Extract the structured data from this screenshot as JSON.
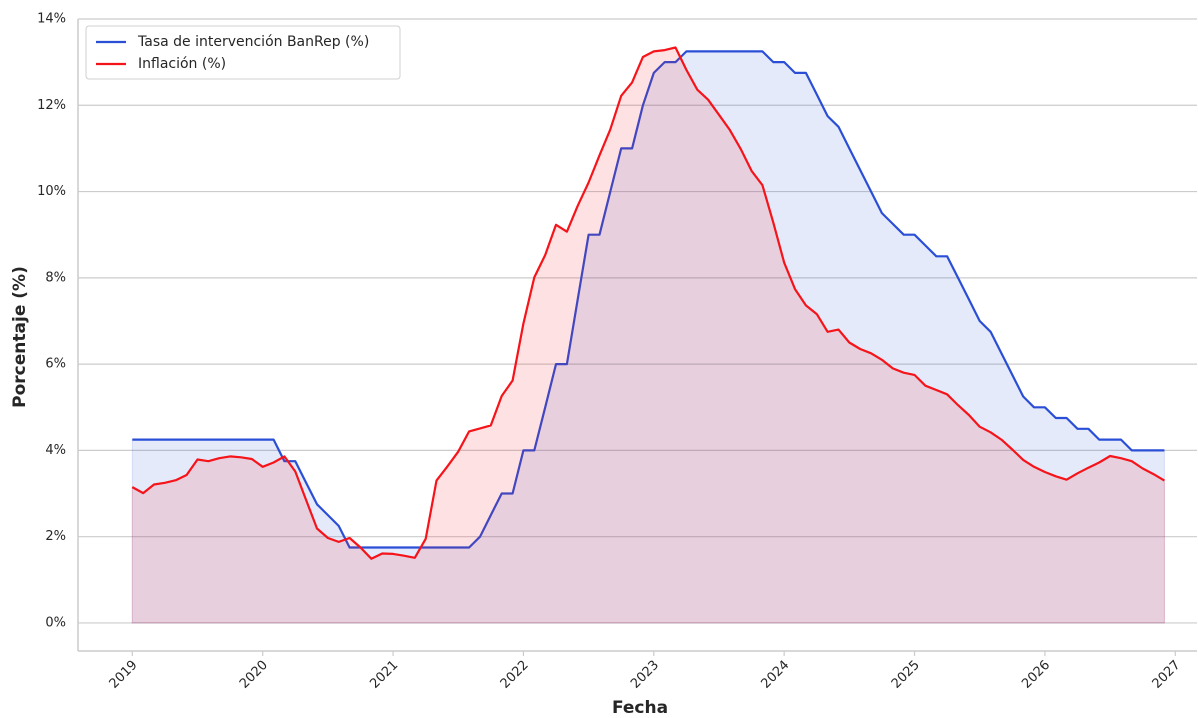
{
  "chart_data": {
    "type": "line",
    "xlabel": "Fecha",
    "ylabel": "Porcentaje (%)",
    "x": [
      "2019-01",
      "2019-02",
      "2019-03",
      "2019-04",
      "2019-05",
      "2019-06",
      "2019-07",
      "2019-08",
      "2019-09",
      "2019-10",
      "2019-11",
      "2019-12",
      "2020-01",
      "2020-02",
      "2020-03",
      "2020-04",
      "2020-05",
      "2020-06",
      "2020-07",
      "2020-08",
      "2020-09",
      "2020-10",
      "2020-11",
      "2020-12",
      "2021-01",
      "2021-02",
      "2021-03",
      "2021-04",
      "2021-05",
      "2021-06",
      "2021-07",
      "2021-08",
      "2021-09",
      "2021-10",
      "2021-11",
      "2021-12",
      "2022-01",
      "2022-02",
      "2022-03",
      "2022-04",
      "2022-05",
      "2022-06",
      "2022-07",
      "2022-08",
      "2022-09",
      "2022-10",
      "2022-11",
      "2022-12",
      "2023-01",
      "2023-02",
      "2023-03",
      "2023-04",
      "2023-05",
      "2023-06",
      "2023-07",
      "2023-08",
      "2023-09",
      "2023-10",
      "2023-11",
      "2023-12",
      "2024-01",
      "2024-02",
      "2024-03",
      "2024-04",
      "2024-05",
      "2024-06",
      "2024-07",
      "2024-08",
      "2024-09",
      "2024-10",
      "2024-11",
      "2024-12",
      "2025-01",
      "2025-02",
      "2025-03",
      "2025-04",
      "2025-05",
      "2025-06",
      "2025-07",
      "2025-08",
      "2025-09",
      "2025-10",
      "2025-11",
      "2025-12",
      "2026-01",
      "2026-02",
      "2026-03",
      "2026-04",
      "2026-05",
      "2026-06",
      "2026-07",
      "2026-08",
      "2026-09",
      "2026-10",
      "2026-11",
      "2026-12"
    ],
    "series": [
      {
        "name": "Tasa de intervención BanRep (%)",
        "color": "#2a4fd6",
        "values": [
          4.25,
          4.25,
          4.25,
          4.25,
          4.25,
          4.25,
          4.25,
          4.25,
          4.25,
          4.25,
          4.25,
          4.25,
          4.25,
          4.25,
          3.75,
          3.75,
          3.25,
          2.75,
          2.5,
          2.25,
          1.75,
          1.75,
          1.75,
          1.75,
          1.75,
          1.75,
          1.75,
          1.75,
          1.75,
          1.75,
          1.75,
          1.75,
          2.0,
          2.5,
          3.0,
          3.0,
          4.0,
          4.0,
          5.0,
          6.0,
          6.0,
          7.5,
          9.0,
          9.0,
          10.0,
          11.0,
          11.0,
          12.0,
          12.75,
          13.0,
          13.0,
          13.25,
          13.25,
          13.25,
          13.25,
          13.25,
          13.25,
          13.25,
          13.25,
          13.0,
          13.0,
          12.75,
          12.75,
          12.25,
          11.75,
          11.5,
          11.0,
          10.5,
          10.0,
          9.5,
          9.25,
          9.0,
          9.0,
          8.75,
          8.5,
          8.5,
          8.0,
          7.5,
          7.0,
          6.75,
          6.25,
          5.75,
          5.25,
          5.0,
          5.0,
          4.75,
          4.75,
          4.5,
          4.5,
          4.25,
          4.25,
          4.25,
          4.0,
          4.0,
          4.0,
          4.0
        ]
      },
      {
        "name": "Inflación (%)",
        "color": "#f5141a",
        "values": [
          3.15,
          3.01,
          3.21,
          3.25,
          3.31,
          3.43,
          3.79,
          3.75,
          3.82,
          3.86,
          3.84,
          3.8,
          3.62,
          3.72,
          3.86,
          3.51,
          2.85,
          2.19,
          1.97,
          1.88,
          1.97,
          1.75,
          1.49,
          1.61,
          1.6,
          1.56,
          1.51,
          1.95,
          3.3,
          3.63,
          3.97,
          4.44,
          4.51,
          4.58,
          5.26,
          5.62,
          6.94,
          8.01,
          8.53,
          9.23,
          9.07,
          9.67,
          10.21,
          10.84,
          11.44,
          12.22,
          12.53,
          13.12,
          13.25,
          13.28,
          13.34,
          12.82,
          12.36,
          12.13,
          11.78,
          11.43,
          10.99,
          10.48,
          10.15,
          9.28,
          8.35,
          7.74,
          7.36,
          7.16,
          6.75,
          6.8,
          6.5,
          6.35,
          6.25,
          6.1,
          5.9,
          5.8,
          5.75,
          5.5,
          5.4,
          5.3,
          5.05,
          4.82,
          4.55,
          4.42,
          4.25,
          4.02,
          3.78,
          3.62,
          3.5,
          3.4,
          3.32,
          3.47,
          3.6,
          3.72,
          3.87,
          3.82,
          3.75,
          3.58,
          3.45,
          3.3
        ]
      }
    ],
    "xlim": [
      "2018-08",
      "2027-03"
    ],
    "xticks": [
      "2019",
      "2020",
      "2021",
      "2022",
      "2023",
      "2024",
      "2025",
      "2026",
      "2027"
    ],
    "ylim": [
      -0.65,
      14
    ],
    "yticks": [
      {
        "value": 0,
        "label": "0%"
      },
      {
        "value": 2,
        "label": "2%"
      },
      {
        "value": 4,
        "label": "4%"
      },
      {
        "value": 6,
        "label": "6%"
      },
      {
        "value": 8,
        "label": "8%"
      },
      {
        "value": 10,
        "label": "10%"
      },
      {
        "value": 12,
        "label": "12%"
      },
      {
        "value": 14,
        "label": "14%"
      }
    ],
    "grid": true,
    "fill": true,
    "legend": "upper left"
  }
}
